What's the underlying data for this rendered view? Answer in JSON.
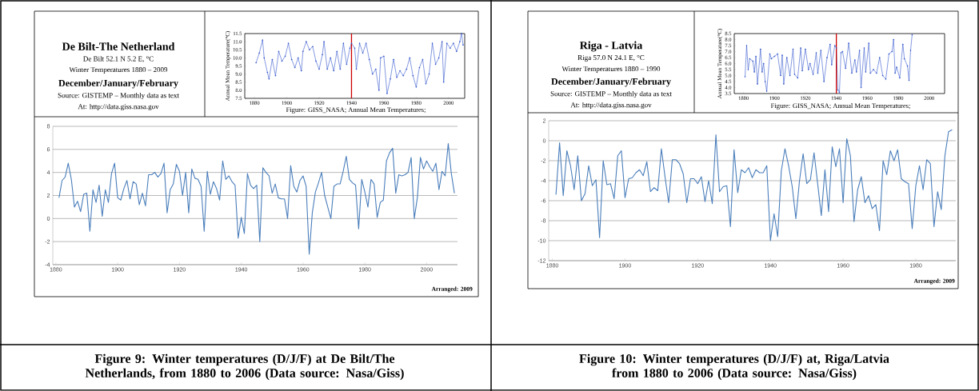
{
  "chart_data": [
    {
      "type": "line",
      "title": "De Bilt-The Netherland",
      "subtitle": "De Bilt 52.1 N 5.2 E, °C",
      "annotations": [
        "Winter Temperatures 1880 – 2009",
        "December/January/February",
        "Source: GISTEMP – Monthly data as text",
        "At: http://data.giss.nasa.gov",
        "Arranged: 2009",
        "Figure 9:  Winter temperatures (D/J/F) at De Bilt/The Netherlands, from 1880 to 2006 (Data source: Nasa/Giss)"
      ],
      "x": [
        1881,
        1882,
        1883,
        1884,
        1885,
        1886,
        1887,
        1888,
        1889,
        1890,
        1891,
        1892,
        1893,
        1894,
        1895,
        1896,
        1897,
        1898,
        1899,
        1900,
        1901,
        1902,
        1903,
        1904,
        1905,
        1906,
        1907,
        1908,
        1909,
        1910,
        1911,
        1912,
        1913,
        1914,
        1915,
        1916,
        1917,
        1918,
        1919,
        1920,
        1921,
        1922,
        1923,
        1924,
        1925,
        1926,
        1927,
        1928,
        1929,
        1930,
        1931,
        1932,
        1933,
        1934,
        1935,
        1936,
        1937,
        1938,
        1939,
        1940,
        1941,
        1942,
        1943,
        1944,
        1945,
        1946,
        1947,
        1948,
        1949,
        1950,
        1951,
        1952,
        1953,
        1954,
        1955,
        1956,
        1957,
        1958,
        1959,
        1960,
        1961,
        1962,
        1963,
        1964,
        1965,
        1966,
        1967,
        1968,
        1969,
        1970,
        1971,
        1972,
        1973,
        1974,
        1975,
        1976,
        1977,
        1978,
        1979,
        1980,
        1981,
        1982,
        1983,
        1984,
        1985,
        1986,
        1987,
        1988,
        1989,
        1990,
        1991,
        1992,
        1993,
        1994,
        1995,
        1996,
        1997,
        1998,
        1999,
        2000,
        2001,
        2002,
        2003,
        2004,
        2005,
        2006,
        2007,
        2008,
        2009
      ],
      "values": [
        1.8,
        3.3,
        3.6,
        4.8,
        3.4,
        1.0,
        1.5,
        0.6,
        2.1,
        2.2,
        -1.1,
        2.5,
        1.4,
        2.9,
        0.2,
        2.5,
        1.4,
        3.9,
        4.8,
        1.8,
        1.6,
        2.6,
        3.3,
        1.7,
        3.2,
        3.0,
        1.2,
        2.2,
        1.1,
        3.8,
        3.8,
        4.0,
        3.6,
        3.9,
        4.8,
        0.5,
        2.5,
        3.0,
        4.7,
        4.1,
        2.0,
        4.0,
        0.5,
        4.3,
        3.5,
        3.4,
        2.8,
        -1.1,
        4.1,
        2.1,
        3.2,
        2.6,
        1.6,
        5.0,
        3.4,
        3.7,
        3.2,
        2.9,
        -1.7,
        0.1,
        -1.3,
        3.9,
        2.9,
        2.6,
        2.9,
        -2.0,
        4.4,
        4.0,
        3.7,
        2.2,
        3.0,
        1.8,
        1.7,
        1.7,
        0.0,
        4.6,
        2.8,
        2.3,
        3.3,
        3.7,
        2.8,
        -3.1,
        0.5,
        2.3,
        3.1,
        4.0,
        2.0,
        1.0,
        0.0,
        2.8,
        3.0,
        3.0,
        4.1,
        5.4,
        3.4,
        3.1,
        2.9,
        -0.9,
        3.4,
        2.3,
        1.0,
        3.4,
        3.0,
        0.1,
        1.4,
        1.6,
        5.0,
        5.7,
        6.1,
        2.2,
        3.8,
        3.7,
        3.8,
        4.0,
        5.3,
        0.0,
        1.8,
        5.3,
        4.3,
        5.0,
        4.5,
        4.1,
        4.8,
        2.5,
        4.1,
        3.7,
        6.5,
        3.9,
        2.2
      ],
      "color": "#4a7ebb",
      "xlim": [
        1879,
        2010
      ],
      "xticks": [
        1880,
        1900,
        1920,
        1940,
        1960,
        1980,
        2000
      ],
      "ylim": [
        -4,
        8
      ],
      "yticks": [
        -4,
        -2,
        0,
        2,
        4,
        6,
        8
      ],
      "grid": "y"
    },
    {
      "type": "line",
      "ylabel": "Annual Mean Temperature(°C)",
      "annotations": [
        "Figure: GISS_NASA; Annual Mean Temperatures;"
      ],
      "x": [
        1881,
        1883,
        1885,
        1886,
        1888,
        1889,
        1891,
        1893,
        1895,
        1897,
        1899,
        1901,
        1903,
        1905,
        1907,
        1909,
        1910,
        1912,
        1914,
        1916,
        1918,
        1920,
        1922,
        1923,
        1925,
        1927,
        1929,
        1931,
        1933,
        1935,
        1937,
        1939,
        1940,
        1942,
        1943,
        1945,
        1947,
        1949,
        1951,
        1953,
        1955,
        1957,
        1958,
        1960,
        1962,
        1964,
        1966,
        1968,
        1970,
        1972,
        1974,
        1976,
        1978,
        1980,
        1982,
        1984,
        1986,
        1988,
        1990,
        1992,
        1994,
        1996,
        1997,
        1999,
        2001,
        2003,
        2005,
        2007,
        2008,
        2009
      ],
      "values": [
        9.7,
        10.3,
        11.1,
        10.0,
        9.1,
        8.7,
        9.9,
        8.9,
        10.4,
        9.8,
        10.1,
        10.9,
        9.9,
        9.4,
        10.0,
        9.2,
        10.4,
        11.0,
        10.5,
        10.7,
        9.8,
        9.3,
        10.2,
        11.0,
        9.3,
        10.0,
        9.2,
        10.4,
        9.3,
        10.9,
        9.6,
        10.6,
        10.9,
        10.6,
        9.3,
        10.9,
        10.3,
        10.9,
        9.9,
        9.0,
        9.3,
        8.0,
        10.0,
        10.1,
        7.8,
        8.7,
        9.9,
        8.8,
        9.2,
        8.9,
        9.3,
        10.0,
        8.9,
        8.2,
        9.4,
        9.9,
        8.4,
        9.0,
        10.9,
        9.6,
        10.0,
        11.0,
        8.5,
        10.9,
        10.6,
        10.9,
        10.4,
        11.0,
        11.5,
        10.8
      ],
      "color": "#3355cc",
      "marker": "circle",
      "xlim": [
        1874,
        2010
      ],
      "xticks": [
        1880,
        1900,
        1920,
        1940,
        1960,
        1980,
        2000
      ],
      "ylim": [
        7.5,
        11.5
      ],
      "yticks": [
        {
          "value": 7.5,
          "label": "7.5"
        },
        {
          "value": 8,
          "label": "8.0"
        },
        {
          "value": 8.5,
          "label": "8.5"
        },
        {
          "value": 9,
          "label": "9.0"
        },
        {
          "value": 9.5,
          "label": "9.5"
        },
        {
          "value": 10,
          "label": "10.0"
        },
        {
          "value": 10.5,
          "label": "10.5"
        },
        {
          "value": 11,
          "label": "11.0"
        },
        {
          "value": 11.5,
          "label": "11.5"
        }
      ],
      "ref_lines": [
        {
          "axis": "x",
          "value": 1940,
          "color": "#cc0000"
        }
      ]
    },
    {
      "type": "line",
      "title": "Riga - Latvia",
      "subtitle": "Riga 57.0 N 24.1 E, °C",
      "annotations": [
        "Winter Temperatures 1880 – 1990",
        "December/January/February",
        "Source: GISTEMP – Monthly data as text",
        "At: http://data.giss.nasa.gov",
        "Arranged: 2009",
        "Figure 10:  Winter temperatures (D/J/F) at, Riga/Latvia from 1880 to 2006 (Data source: Nasa/Giss)"
      ],
      "x": [
        1881,
        1882,
        1883,
        1884,
        1885,
        1886,
        1887,
        1888,
        1889,
        1890,
        1891,
        1892,
        1893,
        1894,
        1895,
        1896,
        1897,
        1898,
        1899,
        1900,
        1901,
        1902,
        1903,
        1904,
        1905,
        1906,
        1907,
        1908,
        1909,
        1910,
        1911,
        1912,
        1913,
        1914,
        1915,
        1916,
        1917,
        1918,
        1919,
        1920,
        1921,
        1922,
        1923,
        1924,
        1925,
        1926,
        1927,
        1928,
        1929,
        1930,
        1931,
        1932,
        1933,
        1934,
        1935,
        1936,
        1937,
        1938,
        1939,
        1940,
        1941,
        1942,
        1943,
        1944,
        1945,
        1946,
        1947,
        1948,
        1949,
        1950,
        1951,
        1952,
        1953,
        1954,
        1955,
        1956,
        1957,
        1958,
        1959,
        1960,
        1961,
        1962,
        1963,
        1964,
        1965,
        1966,
        1967,
        1968,
        1969,
        1970,
        1971,
        1972,
        1973,
        1974,
        1975,
        1976,
        1977,
        1978,
        1979,
        1980,
        1981,
        1982,
        1983,
        1984,
        1985,
        1986,
        1987,
        1988,
        1989,
        1990
      ],
      "values": [
        -5.4,
        -0.2,
        -5.5,
        -1.0,
        -2.5,
        -4.9,
        -1.5,
        -6.0,
        -5.3,
        -2.5,
        -4.5,
        -3.9,
        -9.7,
        -2.0,
        -4.4,
        -4.3,
        -5.8,
        -1.5,
        -1.0,
        -5.7,
        -3.8,
        -3.7,
        -3.2,
        -2.9,
        -3.5,
        -2.1,
        -5.1,
        -4.7,
        -5.0,
        -0.8,
        -3.6,
        -6.2,
        -1.9,
        -1.9,
        -2.3,
        -3.3,
        -6.2,
        -3.8,
        -3.8,
        -4.3,
        -3.6,
        -6.1,
        -4.0,
        -6.3,
        0.6,
        -5.1,
        -4.6,
        -4.5,
        -8.6,
        -0.9,
        -5.2,
        -2.9,
        -3.2,
        -2.7,
        -3.7,
        -2.9,
        -3.2,
        -3.2,
        -2.5,
        -10.0,
        -7.3,
        -9.6,
        -3.0,
        -0.8,
        -2.5,
        -4.6,
        -7.8,
        -4.0,
        -1.3,
        -4.3,
        -3.9,
        -1.2,
        -4.3,
        -7.5,
        -2.9,
        -7.1,
        -0.6,
        -2.6,
        -0.8,
        -6.2,
        0.2,
        -1.5,
        -8.1,
        -4.9,
        -3.6,
        -6.2,
        -5.5,
        -6.8,
        -6.4,
        -9.0,
        -2.0,
        -3.4,
        -1.0,
        -2.0,
        -0.9,
        -3.8,
        -4.1,
        -4.3,
        -8.8,
        -4.5,
        -2.5,
        -4.9,
        -1.9,
        -2.3,
        -8.6,
        -5.1,
        -6.9,
        -1.5,
        0.9,
        1.1
      ],
      "color": "#4a7ebb",
      "xlim": [
        1879,
        1991
      ],
      "xticks": [
        1880,
        1900,
        1920,
        1940,
        1960,
        1980
      ],
      "ylim": [
        -12,
        2
      ],
      "yticks": [
        -12,
        -10,
        -8,
        -6,
        -4,
        -2,
        0,
        2
      ],
      "grid": "y"
    },
    {
      "type": "line",
      "ylabel": "Annual Mean Temperature(°C)",
      "annotations": [
        "Figure: GISS_NASA; Annual Mean Temperatures;"
      ],
      "x": [
        1881,
        1882,
        1883,
        1884,
        1886,
        1887,
        1888,
        1889,
        1891,
        1892,
        1893,
        1894,
        1895,
        1897,
        1898,
        1900,
        1902,
        1904,
        1905,
        1906,
        1908,
        1910,
        1912,
        1913,
        1915,
        1917,
        1918,
        1920,
        1922,
        1923,
        1925,
        1927,
        1928,
        1930,
        1932,
        1934,
        1936,
        1937,
        1939,
        1940,
        1941,
        1942,
        1943,
        1944,
        1946,
        1948,
        1950,
        1952,
        1953,
        1955,
        1956,
        1958,
        1959,
        1961,
        1962,
        1964,
        1966,
        1968,
        1970,
        1972,
        1974,
        1976,
        1977,
        1978,
        1979,
        1981,
        1983,
        1984,
        1986,
        1987,
        1988,
        1989
      ],
      "values": [
        4.9,
        7.5,
        5.5,
        6.4,
        6.2,
        5.3,
        6.6,
        4.3,
        7.2,
        5.3,
        6.0,
        4.5,
        3.7,
        6.8,
        6.4,
        6.6,
        6.8,
        5.0,
        6.7,
        4.3,
        6.5,
        5.0,
        7.2,
        5.1,
        4.8,
        7.3,
        5.4,
        7.2,
        5.5,
        6.0,
        5.1,
        6.9,
        5.2,
        7.1,
        4.5,
        6.5,
        7.6,
        5.9,
        7.5,
        7.3,
        3.8,
        3.6,
        6.9,
        7.0,
        5.6,
        7.7,
        5.2,
        6.3,
        5.3,
        7.1,
        4.0,
        7.3,
        5.3,
        7.7,
        5.2,
        5.5,
        5.2,
        6.5,
        5.0,
        4.7,
        6.8,
        7.0,
        8.0,
        5.2,
        5.7,
        4.8,
        7.6,
        6.4,
        5.8,
        4.6,
        7.1,
        8.4
      ],
      "color": "#3355cc",
      "marker": "circle",
      "xlim": [
        1874,
        2010
      ],
      "xticks": [
        1880,
        1900,
        1920,
        1940,
        1960,
        1980,
        2000
      ],
      "ylim": [
        3.5,
        8.5
      ],
      "yticks": [
        {
          "value": 3.5,
          "label": "3.5"
        },
        {
          "value": 4,
          "label": "4.0"
        },
        {
          "value": 4.5,
          "label": "4.5"
        },
        {
          "value": 5,
          "label": "5.0"
        },
        {
          "value": 5.5,
          "label": "5.5"
        },
        {
          "value": 6,
          "label": "6.0"
        },
        {
          "value": 6.5,
          "label": "6.5"
        },
        {
          "value": 7,
          "label": "7.0"
        },
        {
          "value": 7.5,
          "label": "7.5"
        },
        {
          "value": 8,
          "label": "8.0"
        },
        {
          "value": 8.5,
          "label": "8.5"
        }
      ],
      "ref_lines": [
        {
          "axis": "x",
          "value": 1940,
          "color": "#cc0000"
        }
      ]
    }
  ]
}
